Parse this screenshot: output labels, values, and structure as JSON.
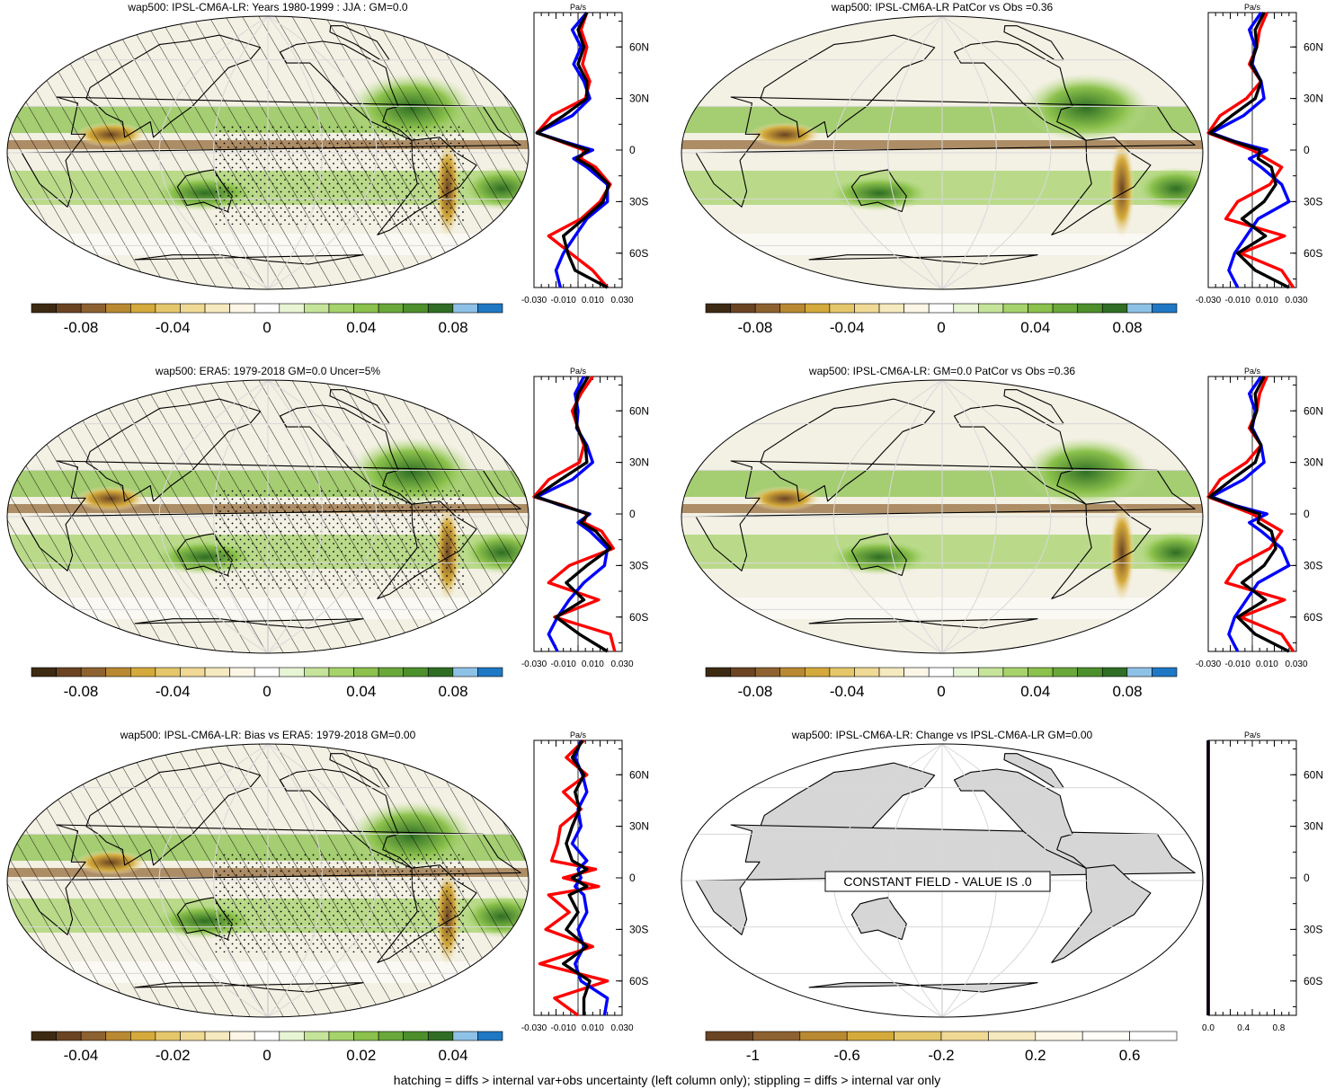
{
  "footer": "hatching = diffs > internal var+obs uncertainty (left column only); stippling = diffs > internal var only",
  "colors": {
    "line_model": "#ff0000",
    "line_obs": "#0000ff",
    "line_mean": "#000000",
    "land_gray": "#d6d6d6",
    "palette_main": [
      "#3d2a12",
      "#6b4423",
      "#8e6230",
      "#b98932",
      "#d4aa3c",
      "#e5c76b",
      "#efd995",
      "#f5e9bf",
      "#fbf6e6",
      "#ffffff",
      "#e8f5d5",
      "#c5e49a",
      "#a7d36c",
      "#8bc14c",
      "#6aa83a",
      "#4d8f2b",
      "#2f6e24",
      "#8ec1e6",
      "#1f78c4"
    ],
    "palette_change": [
      "#6b4423",
      "#8e6230",
      "#b98932",
      "#d4aa3c",
      "#e5c76b",
      "#efd995",
      "#f5e9bf",
      "#fbf6e6",
      "#fffdf7",
      "#ffffff"
    ]
  },
  "chart_data": [
    {
      "id": "panel-1",
      "type": "heatmap",
      "title": "wap500: IPSL-CM6A-LR: Years 1980-1999 : JJA : GM=0.0",
      "colorbar_ticks": [
        "-0.08",
        "-0.04",
        "0",
        "0.04",
        "0.08"
      ],
      "colorbar_levels": 19,
      "profile": {
        "unit": "Pa/s",
        "x_ticks": [
          "-0.030",
          "-0.010",
          "0.010",
          "0.030"
        ],
        "xlim": [
          -0.03,
          0.03
        ],
        "lat_ticks": [
          "60N",
          "30N",
          "0",
          "30S",
          "60S"
        ],
        "series": [
          {
            "role": "model",
            "lat": [
              80,
              70,
              60,
              50,
              40,
              30,
              20,
              10,
              5,
              0,
              -5,
              -10,
              -20,
              -30,
              -40,
              -50,
              -60,
              -70,
              -80
            ],
            "value": [
              0.006,
              0.002,
              0.006,
              0.003,
              0.008,
              0.005,
              -0.018,
              -0.028,
              -0.012,
              0.004,
              0.002,
              0.012,
              0.022,
              0.015,
              0.002,
              -0.02,
              -0.005,
              0.01,
              0.02
            ]
          },
          {
            "role": "obs",
            "lat": [
              80,
              70,
              60,
              50,
              40,
              30,
              20,
              10,
              5,
              0,
              -5,
              -10,
              -20,
              -30,
              -40,
              -50,
              -60,
              -70,
              -80
            ],
            "value": [
              0.006,
              -0.004,
              0.002,
              -0.003,
              0.004,
              0.008,
              -0.004,
              -0.028,
              -0.01,
              0.01,
              -0.003,
              0.006,
              0.02,
              0.02,
              0.006,
              -0.002,
              -0.01,
              -0.015,
              -0.012
            ]
          },
          {
            "role": "mean",
            "lat": [
              80,
              70,
              60,
              50,
              40,
              30,
              20,
              10,
              5,
              0,
              -5,
              -10,
              -20,
              -30,
              -40,
              -50,
              -60,
              -70,
              -80
            ],
            "value": [
              0.006,
              0.0,
              0.004,
              0.0,
              0.006,
              0.006,
              -0.01,
              -0.028,
              -0.011,
              0.007,
              -0.001,
              0.009,
              0.021,
              0.017,
              0.004,
              -0.01,
              -0.007,
              -0.002,
              0.02
            ]
          }
        ]
      }
    },
    {
      "id": "panel-2",
      "type": "heatmap",
      "title": "wap500: IPSL-CM6A-LR PatCor vs Obs =0.36",
      "colorbar_ticks": [
        "-0.08",
        "-0.04",
        "0",
        "0.04",
        "0.08"
      ],
      "colorbar_levels": 19,
      "profile": {
        "unit": "Pa/s",
        "x_ticks": [
          "-0.030",
          "-0.010",
          "0.010",
          "0.030"
        ],
        "xlim": [
          -0.03,
          0.03
        ],
        "lat_ticks": [
          "60N",
          "30N",
          "0",
          "30S",
          "60S"
        ],
        "series": [
          {
            "role": "model",
            "lat": [
              80,
              70,
              60,
              50,
              40,
              30,
              20,
              10,
              5,
              0,
              -5,
              -10,
              -20,
              -30,
              -40,
              -50,
              -60,
              -70,
              -80
            ],
            "value": [
              0.01,
              0.005,
              0.003,
              -0.002,
              0.006,
              -0.004,
              -0.022,
              -0.03,
              -0.015,
              0.0,
              0.01,
              0.02,
              0.012,
              -0.01,
              -0.018,
              0.022,
              -0.008,
              0.02,
              0.028
            ]
          },
          {
            "role": "obs",
            "lat": [
              80,
              70,
              60,
              50,
              40,
              30,
              20,
              10,
              5,
              0,
              -5,
              -10,
              -20,
              -30,
              -40,
              -50,
              -60,
              -70,
              -80
            ],
            "value": [
              0.006,
              -0.002,
              0.002,
              0.0,
              0.006,
              0.008,
              -0.006,
              -0.028,
              -0.012,
              0.01,
              -0.002,
              0.006,
              0.02,
              0.025,
              0.004,
              -0.004,
              -0.012,
              -0.016,
              -0.01
            ]
          },
          {
            "role": "mean",
            "lat": [
              80,
              70,
              60,
              50,
              40,
              30,
              20,
              10,
              5,
              0,
              -5,
              -10,
              -20,
              -30,
              -40,
              -50,
              -60,
              -70,
              -80
            ],
            "value": [
              0.008,
              0.002,
              0.003,
              -0.001,
              0.006,
              0.002,
              -0.014,
              -0.029,
              -0.013,
              0.005,
              0.004,
              0.013,
              0.016,
              0.008,
              -0.007,
              0.009,
              -0.01,
              0.002,
              0.025
            ]
          }
        ]
      }
    },
    {
      "id": "panel-3",
      "type": "heatmap",
      "title": "wap500: ERA5: 1979-2018 GM=0.0 Uncer=5%",
      "colorbar_ticks": [
        "-0.08",
        "-0.04",
        "0",
        "0.04",
        "0.08"
      ],
      "colorbar_levels": 19,
      "profile": {
        "unit": "Pa/s",
        "x_ticks": [
          "-0.030",
          "-0.010",
          "0.010",
          "0.030"
        ],
        "xlim": [
          -0.03,
          0.03
        ],
        "lat_ticks": [
          "60N",
          "30N",
          "0",
          "30S",
          "60S"
        ],
        "series": [
          {
            "role": "model",
            "lat": [
              80,
              70,
              60,
              50,
              40,
              30,
              20,
              10,
              5,
              0,
              -5,
              -10,
              -20,
              -30,
              -40,
              -50,
              -60,
              -70,
              -80
            ],
            "value": [
              0.01,
              0.002,
              -0.004,
              0.0,
              0.004,
              0.001,
              -0.02,
              -0.03,
              -0.01,
              0.006,
              0.004,
              0.016,
              0.024,
              -0.006,
              -0.02,
              0.014,
              -0.016,
              0.022,
              0.025
            ]
          },
          {
            "role": "obs",
            "lat": [
              80,
              70,
              60,
              50,
              40,
              30,
              20,
              10,
              5,
              0,
              -5,
              -10,
              -20,
              -30,
              -40,
              -50,
              -60,
              -70,
              -80
            ],
            "value": [
              0.004,
              -0.002,
              0.0,
              -0.001,
              0.006,
              0.01,
              -0.004,
              -0.028,
              -0.012,
              0.008,
              0.0,
              0.008,
              0.02,
              0.018,
              0.004,
              -0.006,
              -0.014,
              -0.02,
              -0.014
            ]
          },
          {
            "role": "mean",
            "lat": [
              80,
              70,
              60,
              50,
              40,
              30,
              20,
              10,
              5,
              0,
              -5,
              -10,
              -20,
              -30,
              -40,
              -50,
              -60,
              -70,
              -80
            ],
            "value": [
              0.007,
              0.0,
              -0.002,
              -0.0005,
              0.005,
              0.006,
              -0.012,
              -0.029,
              -0.011,
              0.007,
              0.002,
              0.012,
              0.022,
              0.006,
              -0.008,
              0.004,
              -0.015,
              0.001,
              0.02
            ]
          }
        ]
      }
    },
    {
      "id": "panel-4",
      "type": "heatmap",
      "title": "wap500: IPSL-CM6A-LR: GM=0.0 PatCor vs Obs =0.36",
      "colorbar_ticks": [
        "-0.08",
        "-0.04",
        "0",
        "0.04",
        "0.08"
      ],
      "colorbar_levels": 19,
      "profile": {
        "unit": "Pa/s",
        "x_ticks": [
          "-0.030",
          "-0.010",
          "0.010",
          "0.030"
        ],
        "xlim": [
          -0.03,
          0.03
        ],
        "lat_ticks": [
          "60N",
          "30N",
          "0",
          "30S",
          "60S"
        ],
        "series": [
          {
            "role": "model",
            "lat": [
              80,
              70,
              60,
              50,
              40,
              30,
              20,
              10,
              5,
              0,
              -5,
              -10,
              -20,
              -30,
              -40,
              -50,
              -60,
              -70,
              -80
            ],
            "value": [
              0.01,
              0.005,
              0.003,
              -0.002,
              0.006,
              -0.004,
              -0.022,
              -0.03,
              -0.015,
              0.0,
              0.01,
              0.02,
              0.012,
              -0.01,
              -0.018,
              0.022,
              -0.008,
              0.02,
              0.028
            ]
          },
          {
            "role": "obs",
            "lat": [
              80,
              70,
              60,
              50,
              40,
              30,
              20,
              10,
              5,
              0,
              -5,
              -10,
              -20,
              -30,
              -40,
              -50,
              -60,
              -70,
              -80
            ],
            "value": [
              0.006,
              -0.002,
              0.002,
              0.0,
              0.006,
              0.008,
              -0.006,
              -0.028,
              -0.012,
              0.01,
              -0.002,
              0.006,
              0.02,
              0.025,
              0.004,
              -0.004,
              -0.012,
              -0.016,
              -0.01
            ]
          },
          {
            "role": "mean",
            "lat": [
              80,
              70,
              60,
              50,
              40,
              30,
              20,
              10,
              5,
              0,
              -5,
              -10,
              -20,
              -30,
              -40,
              -50,
              -60,
              -70,
              -80
            ],
            "value": [
              0.008,
              0.002,
              0.003,
              -0.001,
              0.006,
              0.002,
              -0.014,
              -0.029,
              -0.013,
              0.005,
              0.004,
              0.013,
              0.016,
              0.008,
              -0.007,
              0.009,
              -0.01,
              0.002,
              0.025
            ]
          }
        ]
      }
    },
    {
      "id": "panel-5",
      "type": "heatmap",
      "title": "wap500: IPSL-CM6A-LR: Bias vs ERA5: 1979-2018 GM=0.00",
      "colorbar_ticks": [
        "-0.04",
        "-0.02",
        "0",
        "0.02",
        "0.04"
      ],
      "colorbar_levels": 19,
      "profile": {
        "unit": "Pa/s",
        "x_ticks": [
          "-0.030",
          "-0.010",
          "0.010",
          "0.030"
        ],
        "xlim": [
          -0.03,
          0.03
        ],
        "lat_ticks": [
          "60N",
          "30N",
          "0",
          "30S",
          "60S"
        ],
        "series": [
          {
            "role": "model",
            "lat": [
              80,
              70,
              60,
              50,
              40,
              30,
              20,
              10,
              5,
              0,
              -5,
              -10,
              -20,
              -30,
              -40,
              -50,
              -60,
              -70,
              -80
            ],
            "value": [
              0.004,
              -0.008,
              0.006,
              -0.01,
              0.002,
              -0.012,
              -0.014,
              -0.018,
              0.012,
              -0.01,
              0.014,
              -0.02,
              -0.006,
              -0.022,
              0.01,
              -0.026,
              0.02,
              -0.016,
              0.0
            ]
          },
          {
            "role": "obs",
            "lat": [
              80,
              70,
              60,
              50,
              40,
              30,
              20,
              10,
              5,
              0,
              -5,
              -10,
              -20,
              -30,
              -40,
              -50,
              -60,
              -70,
              -80
            ],
            "value": [
              0.002,
              -0.002,
              0.003,
              0.006,
              0.0,
              0.002,
              -0.004,
              0.006,
              0.0,
              0.002,
              -0.002,
              0.004,
              0.006,
              0.0,
              0.004,
              -0.002,
              0.002,
              0.02,
              0.018
            ]
          },
          {
            "role": "mean",
            "lat": [
              80,
              70,
              60,
              50,
              40,
              30,
              20,
              10,
              5,
              0,
              -5,
              -10,
              -20,
              -30,
              -40,
              -50,
              -60,
              -70,
              -80
            ],
            "value": [
              0.003,
              -0.004,
              0.004,
              -0.002,
              0.001,
              -0.004,
              -0.008,
              -0.004,
              0.006,
              -0.004,
              0.006,
              -0.006,
              0.0,
              -0.008,
              0.006,
              -0.01,
              0.008,
              0.004,
              0.004
            ]
          }
        ]
      }
    },
    {
      "id": "panel-6",
      "type": "heatmap",
      "title": "wap500: IPSL-CM6A-LR: Change vs IPSL-CM6A-LR GM=0.00",
      "annotation": "CONSTANT FIELD - VALUE IS .0",
      "colorbar_ticks": [
        "-1",
        "-0.6",
        "-0.2",
        "0.2",
        "0.6"
      ],
      "colorbar_levels": 10,
      "profile": {
        "unit": "Pa/s",
        "x_ticks": [
          "0.0",
          "0.4",
          "0.8"
        ],
        "xlim": [
          0,
          1
        ],
        "lat_ticks": [
          "60N",
          "30N",
          "0",
          "30S",
          "60S"
        ],
        "series": [
          {
            "role": "model",
            "lat": [
              80,
              -80
            ],
            "value": [
              0.0,
              0.0
            ]
          },
          {
            "role": "obs",
            "lat": [
              80,
              -80
            ],
            "value": [
              0.0,
              0.0
            ]
          },
          {
            "role": "mean",
            "lat": [
              80,
              -80
            ],
            "value": [
              0.0,
              0.0
            ]
          }
        ]
      }
    }
  ]
}
